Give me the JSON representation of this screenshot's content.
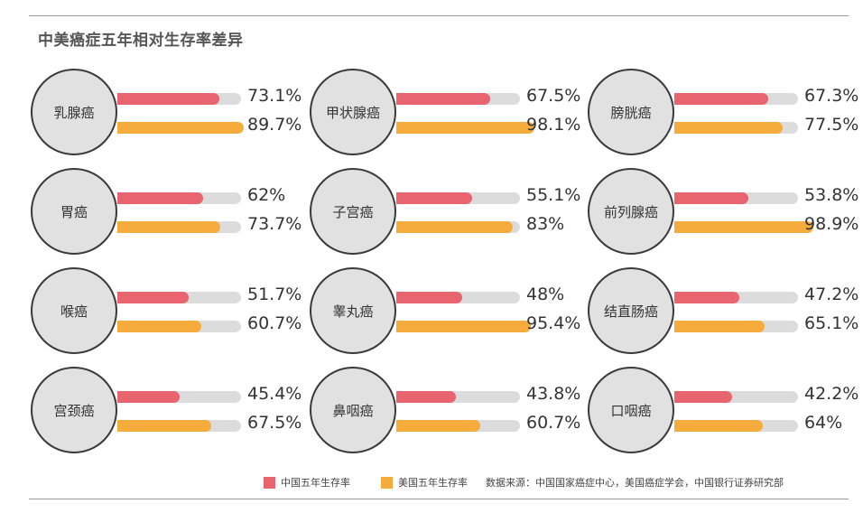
{
  "header": {
    "title": "中美癌症五年相对生存率差异"
  },
  "chart_data": {
    "type": "bar",
    "title": "中美癌症五年相对生存率差异",
    "unit": "%",
    "ylim": [
      0,
      100
    ],
    "categories": [
      "乳腺癌",
      "甲状腺癌",
      "膀胱癌",
      "胃癌",
      "子宫癌",
      "前列腺癌",
      "喉癌",
      "睾丸癌",
      "结直肠癌",
      "宫颈癌",
      "鼻咽癌",
      "口咽癌"
    ],
    "series": [
      {
        "name": "中国五年生存率",
        "color": "#e86570",
        "values": [
          73.1,
          67.5,
          67.3,
          62,
          55.1,
          53.8,
          51.7,
          48,
          47.2,
          45.4,
          43.8,
          42.2
        ]
      },
      {
        "name": "美国五年生存率",
        "color": "#f5ac3c",
        "values": [
          89.7,
          98.1,
          77.5,
          73.7,
          83,
          98.9,
          60.7,
          95.4,
          65.1,
          67.5,
          60.7,
          64
        ]
      }
    ],
    "value_labels": [
      [
        "73.1%",
        "67.5%",
        "67.3%",
        "62%",
        "55.1%",
        "53.8%",
        "51.7%",
        "48%",
        "47.2%",
        "45.4%",
        "43.8%",
        "42.2%"
      ],
      [
        "89.7%",
        "98.1%",
        "77.5%",
        "73.7%",
        "83%",
        "98.9%",
        "60.7%",
        "95.4%",
        "65.1%",
        "67.5%",
        "60.7%",
        "64%"
      ]
    ],
    "legend": {
      "position": "bottom-right",
      "items": [
        "中国五年生存率",
        "美国五年生存率"
      ]
    }
  },
  "footer": {
    "source": "数据来源：中国国家癌症中心，美国癌症学会，中国银行证券研究部"
  }
}
